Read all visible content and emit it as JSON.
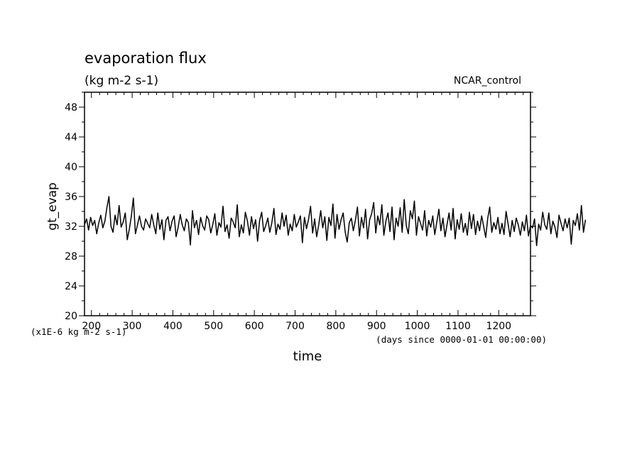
{
  "chart_data": {
    "type": "line",
    "title": "evaporation flux",
    "subtitle": "(kg m-2 s-1)",
    "dataset_label": "NCAR_control",
    "xlabel": "time",
    "ylabel": "gt_evap",
    "x_units": "(days since 0000-01-01 00:00:00)",
    "y_scale_note": "(x1E-6 kg m-2 s-1)",
    "xlim": [
      183,
      1278
    ],
    "ylim": [
      20,
      50
    ],
    "x_major_ticks": [
      200,
      300,
      400,
      500,
      600,
      700,
      800,
      900,
      1000,
      1100,
      1200
    ],
    "x_minor_step": 20,
    "y_major_ticks": [
      20,
      24,
      28,
      32,
      36,
      40,
      44,
      48
    ],
    "y_minor_step": 2,
    "x_tick_labels": [
      "200",
      "300",
      "400",
      "500",
      "600",
      "700",
      "800",
      "900",
      "1000",
      "1100",
      "1200"
    ],
    "y_tick_labels": [
      "20",
      "24",
      "28",
      "32",
      "36",
      "40",
      "44",
      "48"
    ],
    "grid": false,
    "legend": "none",
    "line_color": "#000000",
    "series": [
      {
        "x_start": 183,
        "x_step": 5,
        "y": [
          32.2,
          33.0,
          31.5,
          33.2,
          32.1,
          32.8,
          31.0,
          32.5,
          33.5,
          31.8,
          32.7,
          34.5,
          36.0,
          32.0,
          31.2,
          33.5,
          32.2,
          34.8,
          31.9,
          32.6,
          33.8,
          30.2,
          31.6,
          33.4,
          35.8,
          31.0,
          32.2,
          33.4,
          32.0,
          31.5,
          33.0,
          32.4,
          31.8,
          33.6,
          32.2,
          31.0,
          33.8,
          31.6,
          32.9,
          30.2,
          32.8,
          33.3,
          31.4,
          32.7,
          33.4,
          30.6,
          31.9,
          33.6,
          32.2,
          31.4,
          33.0,
          32.5,
          29.5,
          34.1,
          31.8,
          32.8,
          30.9,
          33.2,
          32.1,
          31.5,
          33.4,
          32.9,
          31.1,
          32.3,
          33.7,
          30.8,
          32.5,
          31.9,
          34.7,
          31.3,
          32.2,
          30.4,
          33.1,
          32.6,
          31.8,
          34.9,
          30.6,
          32.2,
          31.1,
          33.9,
          32.7,
          30.8,
          33.3,
          31.7,
          32.9,
          30.0,
          32.8,
          33.9,
          31.3,
          32.1,
          33.1,
          31.2,
          32.5,
          34.4,
          30.9,
          32.3,
          31.6,
          33.8,
          32.0,
          33.5,
          30.8,
          32.3,
          31.4,
          33.6,
          31.9,
          32.6,
          33.4,
          29.8,
          33.2,
          31.7,
          32.9,
          34.7,
          31.1,
          33.0,
          30.6,
          32.2,
          34.1,
          31.8,
          33.3,
          30.1,
          33.2,
          32.1,
          35.0,
          30.4,
          33.6,
          31.6,
          32.9,
          33.8,
          31.2,
          29.9,
          32.5,
          33.1,
          31.4,
          32.8,
          34.6,
          30.7,
          33.2,
          31.8,
          34.3,
          30.3,
          32.9,
          33.7,
          35.2,
          31.1,
          33.4,
          32.2,
          34.9,
          30.8,
          32.7,
          33.8,
          31.3,
          34.6,
          30.2,
          33.1,
          32.0,
          34.5,
          31.2,
          35.6,
          32.1,
          31.0,
          34.1,
          33.0,
          35.4,
          30.8,
          33.3,
          32.4,
          31.5,
          34.1,
          30.7,
          32.8,
          31.9,
          33.4,
          30.9,
          32.6,
          34.3,
          31.4,
          33.1,
          30.6,
          32.2,
          33.8,
          31.5,
          34.4,
          30.3,
          32.9,
          31.6,
          33.7,
          31.2,
          32.4,
          30.8,
          33.9,
          31.7,
          33.6,
          30.9,
          32.7,
          31.4,
          33.4,
          32.0,
          30.5,
          33.1,
          34.6,
          31.2,
          32.5,
          31.6,
          33.2,
          31.0,
          32.4,
          30.9,
          34.0,
          32.3,
          30.6,
          32.8,
          31.3,
          33.1,
          32.2,
          30.8,
          32.6,
          31.4,
          33.5,
          30.7,
          32.1,
          31.8,
          33.0,
          29.4,
          32.3,
          31.5,
          33.9,
          32.2,
          31.6,
          33.8,
          31.0,
          32.7,
          31.9,
          30.5,
          33.5,
          32.4,
          31.4,
          33.0,
          31.8,
          33.1,
          29.6,
          32.8,
          32.1,
          33.7,
          31.5,
          34.8,
          31.2,
          32.9
        ]
      }
    ]
  }
}
